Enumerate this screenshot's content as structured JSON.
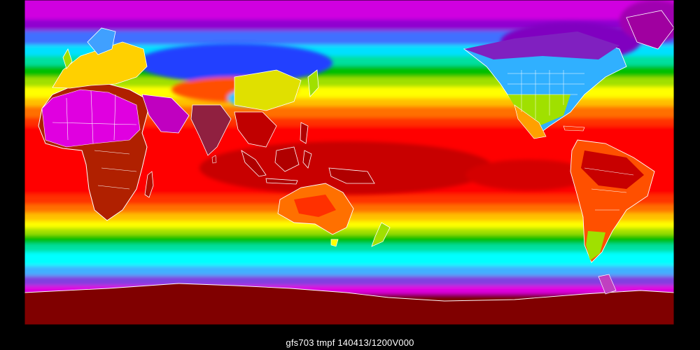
{
  "caption": "gfs703 tmpf 140413/1200V000",
  "palette": {
    "coldest_polar": "#800040",
    "purple": "#a000d0",
    "magenta": "#e000e0",
    "violet": "#7030e0",
    "blue": "#3060ff",
    "light_blue": "#40b0ff",
    "cyan": "#00ffff",
    "teal_green": "#00e090",
    "green": "#00c000",
    "yellow_green": "#a0e000",
    "yellow": "#ffff00",
    "gold": "#ffc000",
    "orange": "#ff7000",
    "red_orange": "#ff3000",
    "red": "#ff0000",
    "dark_red": "#c80000",
    "maroon": "#8a0000",
    "hot_magenta": "#ff00ff",
    "outline": "#ffffff"
  }
}
